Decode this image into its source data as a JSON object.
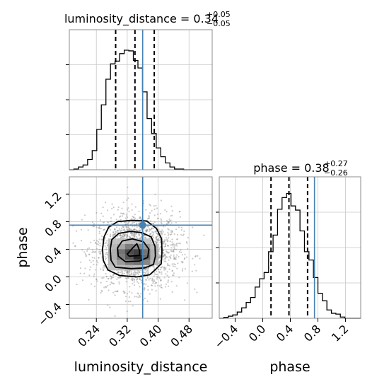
{
  "chart_data": {
    "type": "corner",
    "parameters": [
      "luminosity_distance",
      "phase"
    ],
    "truth": {
      "luminosity_distance": 0.36,
      "phase": 0.75
    },
    "truth_color": "#4682b4",
    "grid": true,
    "panels": [
      {
        "kind": "histogram",
        "parameter": "luminosity_distance",
        "title": {
          "prefix": "luminosity_distance = ",
          "value": "0.34",
          "plus": "+0.05",
          "minus": "−0.05"
        },
        "xlim": [
          0.17,
          0.54
        ],
        "ylim": [
          0,
          410
        ],
        "bin_edges": [
          0.17,
          0.1818,
          0.1937,
          0.2055,
          0.2174,
          0.2292,
          0.2411,
          0.2529,
          0.2648,
          0.2766,
          0.2885,
          0.3003,
          0.3122,
          0.324,
          0.3358,
          0.3477,
          0.3595,
          0.3714,
          0.3832,
          0.3951,
          0.4069,
          0.4188,
          0.4306,
          0.4425,
          0.4543,
          0.4662,
          0.478,
          0.4899,
          0.5017,
          0.5136,
          0.5254,
          0.54
        ],
        "counts": [
          0,
          2,
          8,
          14,
          30,
          56,
          118,
          190,
          265,
          310,
          318,
          340,
          350,
          348,
          320,
          298,
          228,
          150,
          106,
          64,
          38,
          20,
          8,
          2,
          2,
          0,
          0,
          0,
          0,
          0,
          0
        ],
        "quantiles": [
          0.29,
          0.34,
          0.39
        ]
      },
      {
        "kind": "histogram",
        "parameter": "phase",
        "title": {
          "prefix": "phase = ",
          "value": "0.38",
          "plus": "+0.27",
          "minus": "−0.26"
        },
        "xlim": [
          -0.63,
          1.42
        ],
        "xticks": [
          "−0.4",
          "0.0",
          "0.4",
          "0.8",
          "1.2"
        ],
        "xtick_values": [
          -0.4,
          0.0,
          0.4,
          0.8,
          1.2
        ],
        "xlabel": "phase",
        "ylim": [
          0,
          340
        ],
        "bin_edges": [
          -0.63,
          -0.565,
          -0.5,
          -0.435,
          -0.37,
          -0.305,
          -0.24,
          -0.175,
          -0.11,
          -0.045,
          0.02,
          0.085,
          0.15,
          0.215,
          0.28,
          0.345,
          0.41,
          0.475,
          0.54,
          0.605,
          0.67,
          0.735,
          0.8,
          0.865,
          0.93,
          0.995,
          1.06,
          1.125,
          1.19,
          1.255,
          1.32,
          1.42
        ],
        "counts": [
          0,
          2,
          5,
          8,
          15,
          25,
          38,
          50,
          75,
          95,
          110,
          160,
          200,
          262,
          290,
          300,
          270,
          260,
          210,
          160,
          140,
          98,
          60,
          42,
          20,
          12,
          10,
          3,
          0,
          0,
          0
        ],
        "quantiles": [
          0.12,
          0.38,
          0.65
        ]
      },
      {
        "kind": "2d",
        "x": "luminosity_distance",
        "y": "phase",
        "xlim": [
          0.17,
          0.54
        ],
        "ylim": [
          -0.6,
          1.45
        ],
        "xticks": [
          "0.24",
          "0.32",
          "0.40",
          "0.48"
        ],
        "xtick_values": [
          0.24,
          0.32,
          0.4,
          0.48
        ],
        "yticks": [
          "−0.4",
          "0.0",
          "0.4",
          "0.8",
          "1.2"
        ],
        "ytick_values": [
          -0.4,
          0.0,
          0.4,
          0.8,
          1.2
        ],
        "xlabel": "luminosity_distance",
        "ylabel": "phase",
        "density_bins": [
          {
            "x": 0.2924,
            "y": 0.4016,
            "w": 0.0218,
            "h": 0.0772,
            "level": 0.35
          },
          {
            "x": 0.3142,
            "y": 0.4016,
            "w": 0.0218,
            "h": 0.0772,
            "level": 0.55
          },
          {
            "x": 0.336,
            "y": 0.4016,
            "w": 0.0218,
            "h": 0.0772,
            "level": 0.5
          },
          {
            "x": 0.3578,
            "y": 0.4016,
            "w": 0.0218,
            "h": 0.0772,
            "level": 0.4
          },
          {
            "x": 0.2924,
            "y": 0.3244,
            "w": 0.0218,
            "h": 0.0772,
            "level": 0.6
          },
          {
            "x": 0.3142,
            "y": 0.3244,
            "w": 0.0218,
            "h": 0.0772,
            "level": 0.8
          },
          {
            "x": 0.336,
            "y": 0.3244,
            "w": 0.0218,
            "h": 0.0772,
            "level": 0.85
          },
          {
            "x": 0.3578,
            "y": 0.3244,
            "w": 0.0218,
            "h": 0.0772,
            "level": 0.6
          },
          {
            "x": 0.2924,
            "y": 0.2472,
            "w": 0.0218,
            "h": 0.0772,
            "level": 0.55
          },
          {
            "x": 0.3142,
            "y": 0.2472,
            "w": 0.0218,
            "h": 0.0772,
            "level": 0.75
          },
          {
            "x": 0.336,
            "y": 0.2472,
            "w": 0.0218,
            "h": 0.0772,
            "level": 1.0
          },
          {
            "x": 0.3578,
            "y": 0.2472,
            "w": 0.0218,
            "h": 0.0772,
            "level": 0.65
          },
          {
            "x": 0.2924,
            "y": 0.17,
            "w": 0.0218,
            "h": 0.0772,
            "level": 0.4
          },
          {
            "x": 0.3142,
            "y": 0.17,
            "w": 0.0218,
            "h": 0.0772,
            "level": 0.55
          },
          {
            "x": 0.336,
            "y": 0.17,
            "w": 0.0218,
            "h": 0.0772,
            "level": 0.6
          },
          {
            "x": 0.3578,
            "y": 0.17,
            "w": 0.0218,
            "h": 0.0772,
            "level": 0.5
          },
          {
            "x": 0.2705,
            "y": 0.4788,
            "w": 0.0218,
            "h": 0.0772,
            "level": 0.2
          },
          {
            "x": 0.2924,
            "y": 0.4788,
            "w": 0.0218,
            "h": 0.0772,
            "level": 0.2
          },
          {
            "x": 0.3142,
            "y": 0.4788,
            "w": 0.0218,
            "h": 0.0772,
            "level": 0.25
          },
          {
            "x": 0.336,
            "y": 0.4788,
            "w": 0.0218,
            "h": 0.0772,
            "level": 0.25
          },
          {
            "x": 0.3578,
            "y": 0.4788,
            "w": 0.0218,
            "h": 0.0772,
            "level": 0.2
          },
          {
            "x": 0.2705,
            "y": 0.0928,
            "w": 0.0218,
            "h": 0.0772,
            "level": 0.2
          },
          {
            "x": 0.2924,
            "y": 0.0928,
            "w": 0.0218,
            "h": 0.0772,
            "level": 0.22
          },
          {
            "x": 0.3142,
            "y": 0.0928,
            "w": 0.0218,
            "h": 0.0772,
            "level": 0.25
          },
          {
            "x": 0.336,
            "y": 0.0928,
            "w": 0.0218,
            "h": 0.0772,
            "level": 0.2
          },
          {
            "x": 0.2705,
            "y": 0.17,
            "w": 0.0218,
            "h": 0.0772,
            "level": 0.25
          },
          {
            "x": 0.2705,
            "y": 0.2472,
            "w": 0.0218,
            "h": 0.0772,
            "level": 0.3
          },
          {
            "x": 0.2705,
            "y": 0.3244,
            "w": 0.0218,
            "h": 0.0772,
            "level": 0.3
          },
          {
            "x": 0.2705,
            "y": 0.4016,
            "w": 0.0218,
            "h": 0.0772,
            "level": 0.25
          },
          {
            "x": 0.3796,
            "y": 0.17,
            "w": 0.0218,
            "h": 0.0772,
            "level": 0.25
          },
          {
            "x": 0.3796,
            "y": 0.2472,
            "w": 0.0218,
            "h": 0.0772,
            "level": 0.3
          },
          {
            "x": 0.3796,
            "y": 0.3244,
            "w": 0.0218,
            "h": 0.0772,
            "level": 0.3
          },
          {
            "x": 0.3796,
            "y": 0.4016,
            "w": 0.0218,
            "h": 0.0772,
            "level": 0.25
          }
        ],
        "contours": [
          {
            "name": "innermost",
            "points": [
              [
                0.325,
                0.3
              ],
              [
                0.352,
                0.31
              ],
              [
                0.352,
                0.38
              ],
              [
                0.345,
                0.48
              ],
              [
                0.336,
                0.43
              ],
              [
                0.32,
                0.33
              ]
            ]
          },
          {
            "name": "inner",
            "points": [
              [
                0.315,
                0.22
              ],
              [
                0.352,
                0.23
              ],
              [
                0.373,
                0.28
              ],
              [
                0.376,
                0.4
              ],
              [
                0.362,
                0.51
              ],
              [
                0.333,
                0.55
              ],
              [
                0.307,
                0.52
              ],
              [
                0.295,
                0.42
              ],
              [
                0.297,
                0.3
              ]
            ]
          },
          {
            "name": "middle",
            "points": [
              [
                0.289,
                0.14
              ],
              [
                0.33,
                0.12
              ],
              [
                0.365,
                0.13
              ],
              [
                0.388,
                0.18
              ],
              [
                0.393,
                0.3
              ],
              [
                0.392,
                0.44
              ],
              [
                0.382,
                0.58
              ],
              [
                0.358,
                0.64
              ],
              [
                0.328,
                0.66
              ],
              [
                0.298,
                0.63
              ],
              [
                0.28,
                0.54
              ],
              [
                0.276,
                0.4
              ],
              [
                0.278,
                0.24
              ]
            ]
          },
          {
            "name": "outer",
            "points": [
              [
                0.27,
                0.1
              ],
              [
                0.3,
                0.02
              ],
              [
                0.345,
                0.0
              ],
              [
                0.378,
                0.03
              ],
              [
                0.392,
                0.1
              ],
              [
                0.408,
                0.19
              ],
              [
                0.41,
                0.35
              ],
              [
                0.409,
                0.55
              ],
              [
                0.396,
                0.7
              ],
              [
                0.37,
                0.81
              ],
              [
                0.33,
                0.82
              ],
              [
                0.295,
                0.8
              ],
              [
                0.272,
                0.72
              ],
              [
                0.26,
                0.58
              ],
              [
                0.256,
                0.4
              ],
              [
                0.258,
                0.24
              ]
            ]
          }
        ],
        "scatter_density": {
          "center": [
            0.345,
            0.38
          ],
          "spread": [
            0.055,
            0.28
          ],
          "count": 1800,
          "color": "#8c8c8c"
        },
        "truth_marker": [
          0.36,
          0.75
        ]
      }
    ]
  }
}
